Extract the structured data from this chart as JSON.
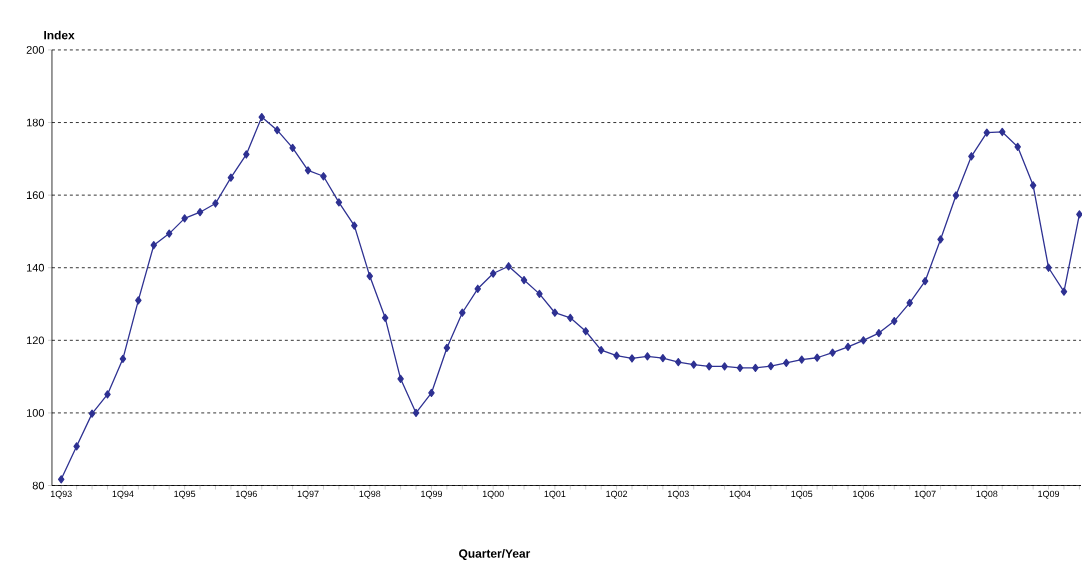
{
  "chart_data": {
    "type": "line",
    "ylabel": "Index",
    "xlabel": "Quarter/Year",
    "categories": [
      "1Q93",
      null,
      null,
      null,
      "1Q94",
      null,
      null,
      null,
      "1Q95",
      null,
      null,
      null,
      "1Q96",
      null,
      null,
      null,
      "1Q97",
      null,
      null,
      null,
      "1Q98",
      null,
      null,
      null,
      "1Q99",
      null,
      null,
      null,
      "1Q00",
      null,
      null,
      null,
      "1Q01",
      null,
      null,
      null,
      "1Q02",
      null,
      null,
      null,
      "1Q03",
      null,
      null,
      null,
      "1Q04",
      null,
      null,
      null,
      "1Q05",
      null,
      null,
      null,
      "1Q06",
      null,
      null,
      null,
      "1Q07",
      null,
      null,
      null,
      "1Q08",
      null,
      null,
      null,
      "1Q09",
      null,
      null
    ],
    "series": [
      {
        "color": "#2e3192",
        "values": [
          81.7,
          90.8,
          99.8,
          105.1,
          114.9,
          131.0,
          146.2,
          149.4,
          153.6,
          155.3,
          157.7,
          164.8,
          171.2,
          181.5,
          177.9,
          173.0,
          166.8,
          165.2,
          158.0,
          151.6,
          137.7,
          126.2,
          109.4,
          100.0,
          105.5,
          117.9,
          127.6,
          134.2,
          138.4,
          140.4,
          136.6,
          132.8,
          127.6,
          126.2,
          122.5,
          117.3,
          115.8,
          115.0,
          115.6,
          115.1,
          114.0,
          113.3,
          112.8,
          112.8,
          112.4,
          112.4,
          112.9,
          113.8,
          114.7,
          115.2,
          116.6,
          118.2,
          120.0,
          122.0,
          125.3,
          130.3,
          136.3,
          147.8,
          159.9,
          170.7,
          177.2,
          177.4,
          173.3,
          162.7,
          140.0,
          133.4,
          154.7
        ]
      }
    ],
    "ylim": [
      80,
      200
    ],
    "yticks": [
      80,
      100,
      120,
      140,
      160,
      180,
      200
    ],
    "grid": "y",
    "marker": "diamond",
    "line_style": "solid"
  }
}
